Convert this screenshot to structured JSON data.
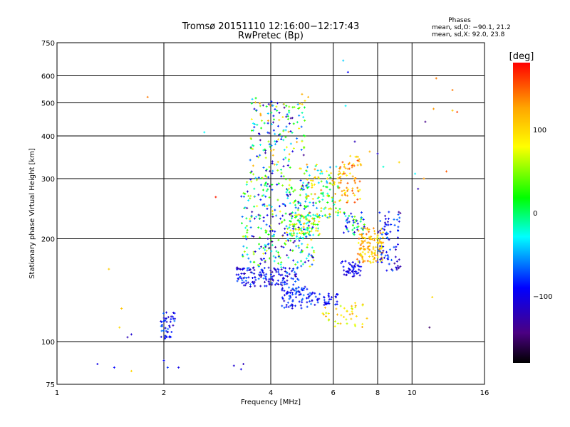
{
  "chart_data": {
    "type": "scatter",
    "title": "Tromsø 20151110 12:16:00−12:17:43",
    "subtitle": "RwPretec (Bp)",
    "xlabel": "Frequency [MHz]",
    "ylabel": "Stationary phase Virtual Height [km]",
    "x_scale": "log",
    "y_scale": "log",
    "xlim": [
      1,
      16
    ],
    "ylim": [
      75,
      750
    ],
    "x_ticks": [
      1,
      2,
      4,
      6,
      8,
      10,
      16
    ],
    "y_ticks": [
      75,
      100,
      200,
      300,
      400,
      500,
      600,
      750
    ],
    "grid": true,
    "phases_box": {
      "title": "Phases",
      "line1": "mean, sd,O: −90.1, 21.2",
      "line2": "mean, sd,X:  92.0, 23.8"
    },
    "colorbar": {
      "label": "[deg]",
      "range": [
        -180,
        180
      ],
      "ticks": [
        "100",
        "0",
        "−100"
      ],
      "tick_values": [
        100,
        0,
        -100
      ]
    },
    "color_scale": [
      "#000000",
      "#4b0082",
      "#0000ff",
      "#00ffff",
      "#00ff00",
      "#ffff00",
      "#ffa500",
      "#ff0000"
    ],
    "clusters": [
      {
        "f": [
          1.95,
          2.15
        ],
        "h": [
          102,
          122
        ],
        "n": 45,
        "phase": [
          -120,
          -60
        ]
      },
      {
        "f": [
          3.2,
          4.8
        ],
        "h": [
          145,
          165
        ],
        "n": 150,
        "phase": [
          -130,
          -60
        ]
      },
      {
        "f": [
          3.3,
          5.3
        ],
        "h": [
          165,
          300
        ],
        "n": 330,
        "phase": [
          -140,
          100
        ]
      },
      {
        "f": [
          3.5,
          5.0
        ],
        "h": [
          300,
          520
        ],
        "n": 180,
        "phase": [
          -140,
          130
        ]
      },
      {
        "f": [
          4.3,
          5.2
        ],
        "h": [
          125,
          145
        ],
        "n": 80,
        "phase": [
          -120,
          -60
        ]
      },
      {
        "f": [
          4.5,
          5.5
        ],
        "h": [
          205,
          235
        ],
        "n": 90,
        "phase": [
          -40,
          120
        ]
      },
      {
        "f": [
          5.0,
          6.3
        ],
        "h": [
          230,
          330
        ],
        "n": 120,
        "phase": [
          -60,
          140
        ]
      },
      {
        "f": [
          5.2,
          6.2
        ],
        "h": [
          128,
          140
        ],
        "n": 40,
        "phase": [
          -110,
          -70
        ]
      },
      {
        "f": [
          6.2,
          7.2
        ],
        "h": [
          255,
          350
        ],
        "n": 70,
        "phase": [
          80,
          160
        ]
      },
      {
        "f": [
          6.3,
          7.2
        ],
        "h": [
          155,
          172
        ],
        "n": 50,
        "phase": [
          -120,
          -80
        ]
      },
      {
        "f": [
          6.4,
          7.4
        ],
        "h": [
          205,
          240
        ],
        "n": 50,
        "phase": [
          -120,
          60
        ]
      },
      {
        "f": [
          7.0,
          8.3
        ],
        "h": [
          170,
          215
        ],
        "n": 120,
        "phase": [
          70,
          150
        ]
      },
      {
        "f": [
          8.0,
          9.3
        ],
        "h": [
          160,
          240
        ],
        "n": 80,
        "phase": [
          -140,
          -60
        ]
      },
      {
        "f": [
          5.6,
          7.5
        ],
        "h": [
          110,
          130
        ],
        "n": 40,
        "phase": [
          60,
          130
        ]
      }
    ],
    "scattered_points": [
      {
        "f": 1.3,
        "h": 86,
        "phase": -100
      },
      {
        "f": 1.45,
        "h": 84,
        "phase": -90
      },
      {
        "f": 1.58,
        "h": 103,
        "phase": -120
      },
      {
        "f": 1.62,
        "h": 105,
        "phase": -110
      },
      {
        "f": 1.5,
        "h": 110,
        "phase": 100
      },
      {
        "f": 1.52,
        "h": 125,
        "phase": 110
      },
      {
        "f": 1.4,
        "h": 163,
        "phase": 105
      },
      {
        "f": 1.8,
        "h": 520,
        "phase": 140
      },
      {
        "f": 1.62,
        "h": 82,
        "phase": 100
      },
      {
        "f": 2.0,
        "h": 88,
        "phase": -90
      },
      {
        "f": 2.05,
        "h": 84,
        "phase": -80
      },
      {
        "f": 2.2,
        "h": 84,
        "phase": -100
      },
      {
        "f": 2.6,
        "h": 410,
        "phase": -30
      },
      {
        "f": 2.8,
        "h": 265,
        "phase": 170
      },
      {
        "f": 3.15,
        "h": 85,
        "phase": -110
      },
      {
        "f": 3.3,
        "h": 83,
        "phase": -100
      },
      {
        "f": 3.35,
        "h": 86,
        "phase": -120
      },
      {
        "f": 6.4,
        "h": 665,
        "phase": -40
      },
      {
        "f": 6.6,
        "h": 615,
        "phase": -90
      },
      {
        "f": 6.5,
        "h": 490,
        "phase": -30
      },
      {
        "f": 4.9,
        "h": 530,
        "phase": 120
      },
      {
        "f": 5.1,
        "h": 520,
        "phase": 120
      },
      {
        "f": 6.9,
        "h": 385,
        "phase": -120
      },
      {
        "f": 7.6,
        "h": 360,
        "phase": 120
      },
      {
        "f": 8.0,
        "h": 355,
        "phase": -110
      },
      {
        "f": 8.3,
        "h": 325,
        "phase": -20
      },
      {
        "f": 9.2,
        "h": 335,
        "phase": 100
      },
      {
        "f": 10.2,
        "h": 310,
        "phase": -30
      },
      {
        "f": 10.4,
        "h": 280,
        "phase": -120
      },
      {
        "f": 10.8,
        "h": 300,
        "phase": 130
      },
      {
        "f": 10.9,
        "h": 440,
        "phase": -140
      },
      {
        "f": 11.2,
        "h": 110,
        "phase": -150
      },
      {
        "f": 11.4,
        "h": 135,
        "phase": 100
      },
      {
        "f": 11.5,
        "h": 480,
        "phase": 130
      },
      {
        "f": 11.7,
        "h": 590,
        "phase": 140
      },
      {
        "f": 12.5,
        "h": 315,
        "phase": 150
      },
      {
        "f": 13.0,
        "h": 545,
        "phase": 140
      },
      {
        "f": 13.4,
        "h": 470,
        "phase": 160
      },
      {
        "f": 13.0,
        "h": 475,
        "phase": 110
      }
    ]
  }
}
